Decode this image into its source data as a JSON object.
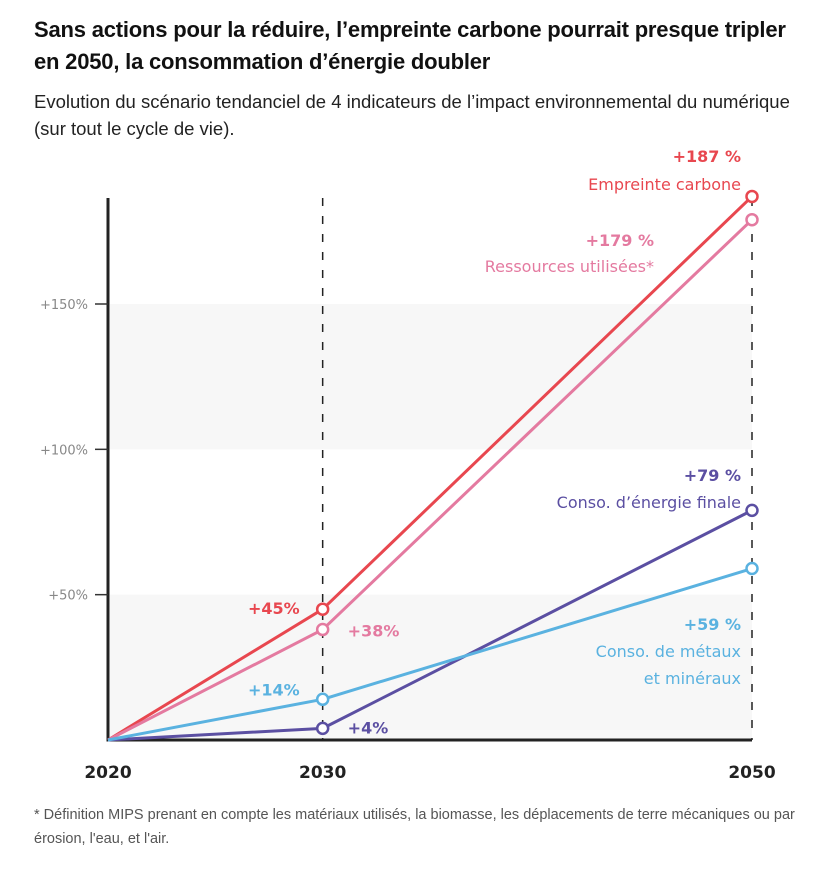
{
  "header": {
    "title": "Sans actions pour la réduire, l’empreinte carbone pourrait presque tripler en 2050, la consommation d’énergie doubler",
    "subtitle": "Evolution du scénario tendanciel de 4 indicateurs de l’impact environnemental du numérique (sur tout le cycle de vie)."
  },
  "footnote": "* Définition MIPS prenant en compte les matériaux utilisés, la biomasse, les déplacements de terre mécaniques ou par érosion, l'eau, et l'air.",
  "chart_data": {
    "type": "line",
    "title": "Sans actions pour la réduire, l’empreinte carbone pourrait presque tripler en 2050, la consommation d’énergie doubler",
    "subtitle": "Evolution du scénario tendanciel de 4 indicateurs de l’impact environnemental du numérique (sur tout le cycle de vie).",
    "xlabel": "",
    "ylabel": "",
    "x": [
      2020,
      2030,
      2050
    ],
    "x_tick_labels": [
      "2020",
      "2030",
      "2050"
    ],
    "xlim": [
      2020,
      2050
    ],
    "ylim": [
      0,
      187
    ],
    "y_ticks": [
      50,
      100,
      150
    ],
    "y_tick_labels": [
      "+50%",
      "+100%",
      "+150%"
    ],
    "grid": "alternating horizontal bands",
    "reference_lines": [
      2030,
      2050
    ],
    "series": [
      {
        "name": "Empreinte carbone",
        "color": "#e8474f",
        "values": [
          0,
          45,
          187
        ],
        "point_labels": [
          "",
          "+45%",
          "+187 %"
        ]
      },
      {
        "name": "Ressources utilisées*",
        "color": "#e47aa0",
        "values": [
          0,
          38,
          179
        ],
        "point_labels": [
          "",
          "+38%",
          "+179 %"
        ]
      },
      {
        "name": "Conso. d’énergie finale",
        "color": "#5b4fa2",
        "values": [
          0,
          4,
          79
        ],
        "point_labels": [
          "",
          "+4%",
          "+79 %"
        ]
      },
      {
        "name": "Conso. de métaux et minéraux",
        "name_lines": [
          "Conso. de métaux",
          "et minéraux"
        ],
        "color": "#5ab2e0",
        "values": [
          0,
          14,
          59
        ],
        "point_labels": [
          "",
          "+14%",
          "+59 %"
        ]
      }
    ],
    "legend": "inline labels at line ends"
  }
}
